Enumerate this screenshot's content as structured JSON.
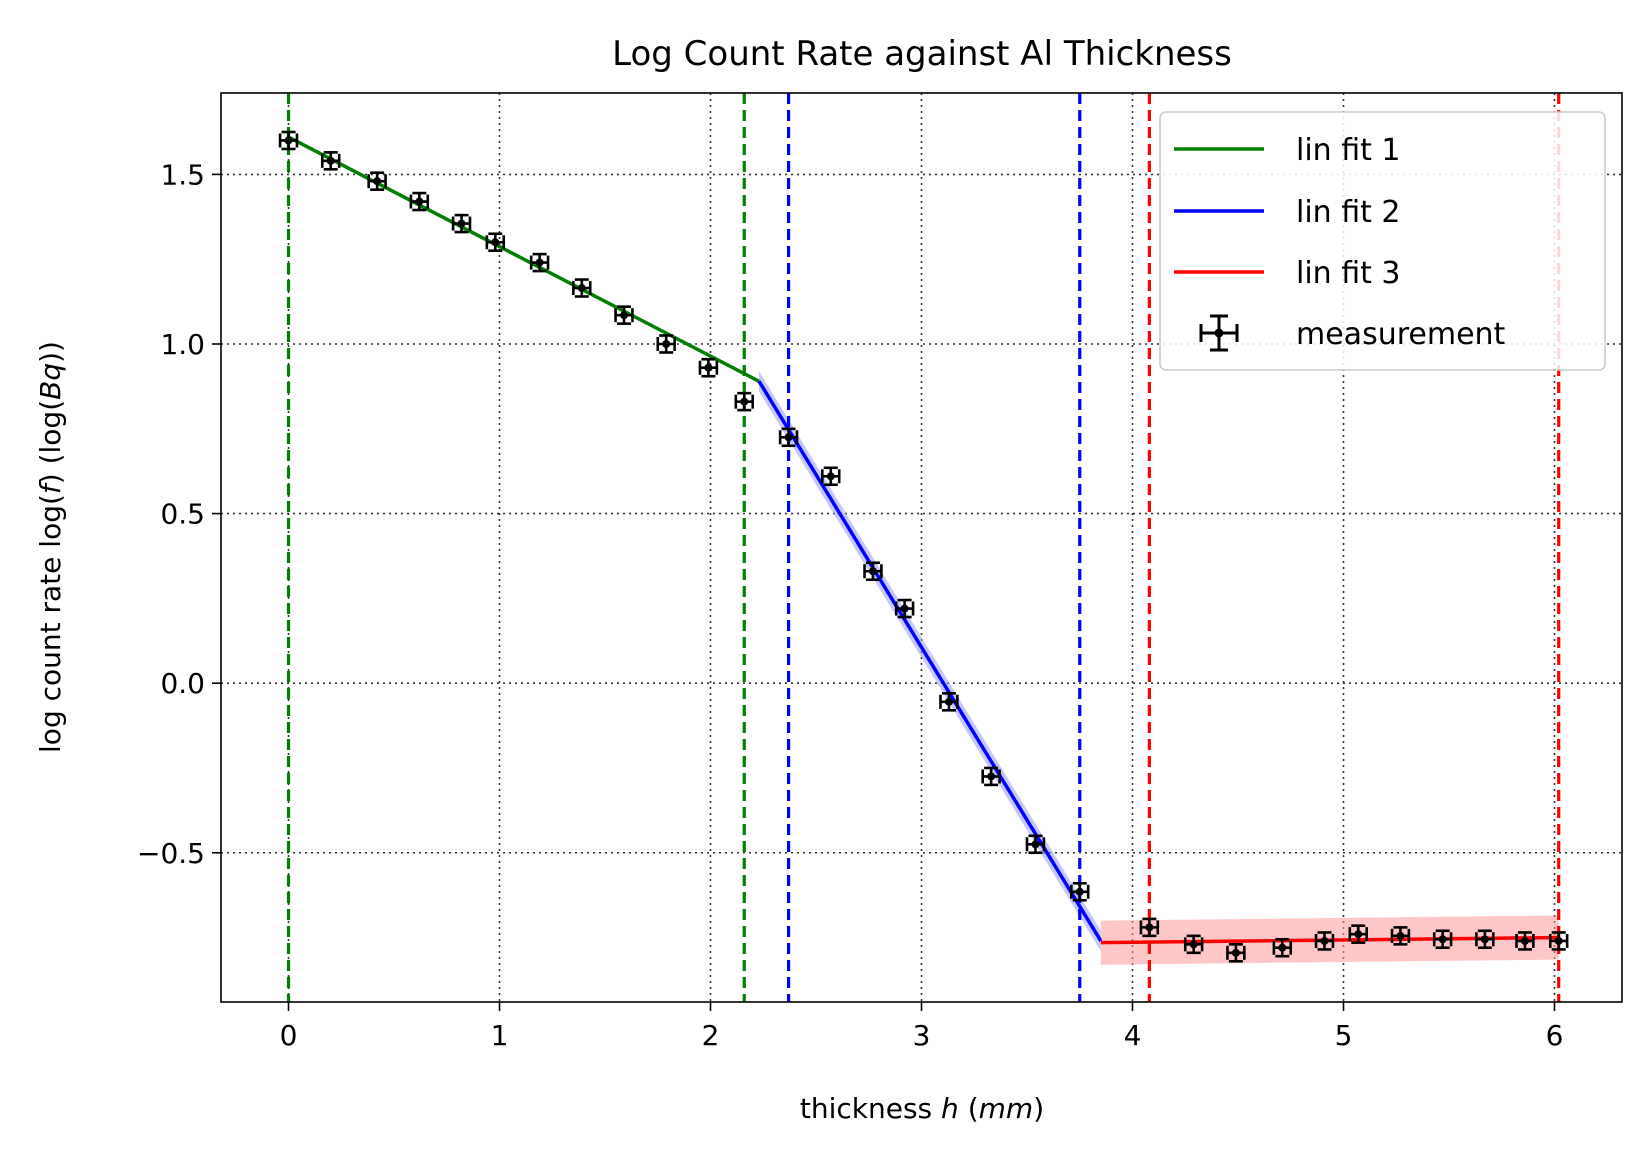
{
  "chart_data": {
    "type": "line",
    "title": "Log Count Rate against Al Thickness",
    "xlabel": {
      "prefix": "thickness ",
      "var": "h",
      "open": " (",
      "unit": "mm",
      "close": ")"
    },
    "ylabel": {
      "prefix": "log count rate log(",
      "var": "f",
      "mid": ") (log(",
      "unit": "Bq",
      "close": "))"
    },
    "xlim": [
      -0.32,
      6.32
    ],
    "ylim": [
      -0.94,
      1.74
    ],
    "xticks": [
      0,
      1,
      2,
      3,
      4,
      5,
      6
    ],
    "xtick_labels": [
      "0",
      "1",
      "2",
      "3",
      "4",
      "5",
      "6"
    ],
    "yticks": [
      -0.5,
      0.0,
      0.5,
      1.0,
      1.5
    ],
    "ytick_labels": [
      "−0.5",
      "0.0",
      "0.5",
      "1.0",
      "1.5"
    ],
    "grid": "dotted",
    "legend_position": "top-right",
    "colors": {
      "fit1": "#008000",
      "fit2": "#0000ff",
      "fit3": "#ff0000",
      "band2": "#9999ff",
      "band3": "#ff9999",
      "measurement": "#000000",
      "grid": "#333333"
    },
    "fits": [
      {
        "name": "lin fit 1",
        "color_key": "fit1",
        "x": [
          0.0,
          2.23
        ],
        "y": [
          1.61,
          0.89
        ],
        "band": 0.0
      },
      {
        "name": "lin fit 2",
        "color_key": "fit2",
        "x": [
          2.23,
          3.85
        ],
        "y": [
          0.89,
          -0.76
        ],
        "band": 0.03
      },
      {
        "name": "lin fit 3",
        "color_key": "fit3",
        "x": [
          3.85,
          6.02
        ],
        "y": [
          -0.765,
          -0.75
        ],
        "band": 0.065
      }
    ],
    "vlines": [
      {
        "x": 0.0,
        "color_key": "fit1"
      },
      {
        "x": 2.16,
        "color_key": "fit1"
      },
      {
        "x": 2.37,
        "color_key": "fit2"
      },
      {
        "x": 3.75,
        "color_key": "fit2"
      },
      {
        "x": 4.08,
        "color_key": "fit3"
      },
      {
        "x": 6.02,
        "color_key": "fit3"
      }
    ],
    "measurement_label": "measurement",
    "measurements": {
      "x": [
        0.0,
        0.2,
        0.42,
        0.62,
        0.82,
        0.98,
        1.19,
        1.39,
        1.59,
        1.79,
        1.99,
        2.16,
        2.37,
        2.57,
        2.77,
        2.92,
        3.13,
        3.33,
        3.54,
        3.75,
        4.08,
        4.29,
        4.49,
        4.71,
        4.91,
        5.07,
        5.27,
        5.47,
        5.67,
        5.86,
        6.02
      ],
      "y": [
        1.6,
        1.54,
        1.48,
        1.42,
        1.355,
        1.3,
        1.24,
        1.165,
        1.085,
        1.0,
        0.93,
        0.83,
        0.725,
        0.61,
        0.33,
        0.22,
        -0.055,
        -0.275,
        -0.475,
        -0.615,
        -0.72,
        -0.77,
        -0.795,
        -0.78,
        -0.76,
        -0.74,
        -0.745,
        -0.755,
        -0.755,
        -0.76,
        -0.76
      ],
      "xerr": 0.04,
      "yerr": 0.025
    }
  }
}
